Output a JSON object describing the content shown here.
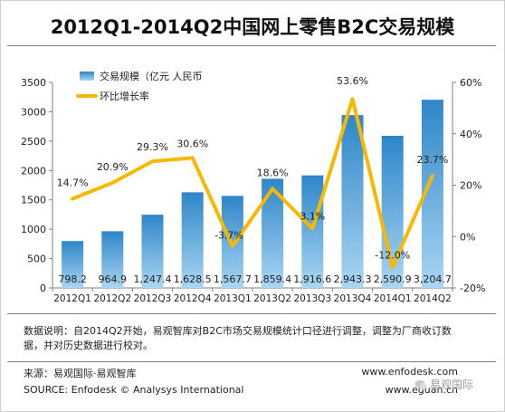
{
  "title": "2012Q1-2014Q2中国网上零售B2C交易规模",
  "chart_data": {
    "type": "bar",
    "categories": [
      "2012Q1",
      "2012Q2",
      "2012Q3",
      "2012Q4",
      "2013Q1",
      "2013Q2",
      "2013Q3",
      "2013Q4",
      "2014Q1",
      "2014Q2"
    ],
    "series": [
      {
        "name": "交易规模（亿元 人民币",
        "type": "bar",
        "axis": "left",
        "values": [
          798.2,
          964.9,
          1247.4,
          1628.5,
          1567.7,
          1859.4,
          1916.6,
          2943.3,
          2590.9,
          3204.7
        ],
        "value_labels": [
          "798.2",
          "964.9",
          "1,247.4",
          "1,628.5",
          "1,567.7",
          "1,859.4",
          "1,916.6",
          "2,943.3",
          "2,590.9",
          "3,204.7"
        ]
      },
      {
        "name": "环比增长率",
        "type": "line",
        "axis": "right",
        "values": [
          14.7,
          20.9,
          29.3,
          30.6,
          -3.7,
          18.6,
          3.1,
          53.6,
          -12.0,
          23.7
        ],
        "value_labels": [
          "14.7%",
          "20.9%",
          "29.3%",
          "30.6%",
          "-3.7%",
          "18.6%",
          "3.1%",
          "53.6%",
          "-12.0%",
          "23.7%"
        ]
      }
    ],
    "y_left": {
      "min": 0,
      "max": 3500,
      "ticks": [
        "0",
        "500",
        "1000",
        "1500",
        "2000",
        "2500",
        "3000",
        "3500"
      ]
    },
    "y_right": {
      "min": -20,
      "max": 60,
      "ticks": [
        "-20%",
        "0%",
        "20%",
        "40%",
        "60%"
      ]
    },
    "legend": "top-left",
    "grid": false,
    "colors": {
      "bar_top": "#2e86c9",
      "bar_bottom": "#a9d6f2",
      "line": "#f7b800"
    }
  },
  "note": "数据说明：自2014Q2开始，易观智库对B2C市场交易规模统计口径进行调整，调整为厂商收订数据，并对历史数据进行校对。",
  "source_cn": "来源：易观国际·易观智库",
  "source_en": "SOURCE: Enfodesk © Analysys International",
  "site1": "www.enfodesk.com",
  "site2": "www.eguan.cn",
  "watermark": "易观国际"
}
